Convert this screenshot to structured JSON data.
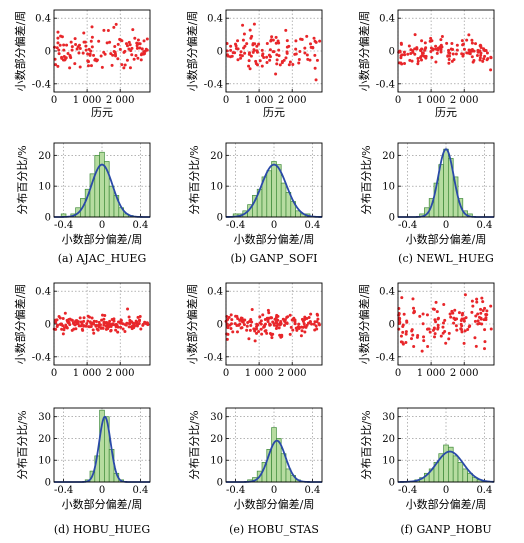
{
  "colors": {
    "scatter": "#e8262a",
    "bar_fill": "#b6dca0",
    "bar_edge": "#3f8a3a",
    "curve": "#2a4aa8",
    "grid": "#888888"
  },
  "chart_data": [
    {
      "id": "a",
      "caption": "(a) AJAC_HUEG",
      "scatter": {
        "type": "scatter",
        "xlabel": "历元",
        "ylabel": "小数部分偏差/周",
        "xlim": [
          0,
          2900
        ],
        "ylim": [
          -0.5,
          0.5
        ],
        "xticks": [
          "0",
          "1 000",
          "2 000"
        ],
        "xtick_values": [
          0,
          1000,
          2000
        ],
        "yticks": [
          "-0.4",
          "0",
          "0.4"
        ],
        "ytick_values": [
          -0.4,
          0,
          0.4
        ],
        "spread": 0.11,
        "count": 130,
        "seed": 11
      },
      "hist": {
        "type": "bar",
        "xlabel": "小数部分偏差/周",
        "ylabel": "分布百分比/%",
        "xlim": [
          -0.5,
          0.5
        ],
        "ylim": [
          0,
          24
        ],
        "xticks": [
          "-0.4",
          "0",
          "0.4"
        ],
        "xtick_values": [
          -0.4,
          0,
          0.4
        ],
        "yticks": [
          "0",
          "10",
          "20"
        ],
        "ytick_values": [
          0,
          10,
          20
        ],
        "bin_width": 0.05,
        "bins": [
          {
            "x": -0.4,
            "v": 1
          },
          {
            "x": -0.35,
            "v": 0
          },
          {
            "x": -0.3,
            "v": 1
          },
          {
            "x": -0.25,
            "v": 3
          },
          {
            "x": -0.2,
            "v": 6
          },
          {
            "x": -0.15,
            "v": 9
          },
          {
            "x": -0.1,
            "v": 14
          },
          {
            "x": -0.05,
            "v": 20
          },
          {
            "x": 0,
            "v": 21
          },
          {
            "x": 0.05,
            "v": 18
          },
          {
            "x": 0.1,
            "v": 10
          },
          {
            "x": 0.15,
            "v": 7
          },
          {
            "x": 0.2,
            "v": 3
          },
          {
            "x": 0.25,
            "v": 1
          },
          {
            "x": 0.3,
            "v": 0.5
          }
        ],
        "curve": {
          "mu": 0.0,
          "sigma": 0.11,
          "peak": 17
        }
      }
    },
    {
      "id": "b",
      "caption": "(b) GANP_SOFI",
      "scatter": {
        "type": "scatter",
        "xlabel": "历元",
        "ylabel": "小数部分偏差/周",
        "xlim": [
          0,
          2900
        ],
        "ylim": [
          -0.5,
          0.5
        ],
        "xticks": [
          "0",
          "1 000",
          "2 000"
        ],
        "xtick_values": [
          0,
          1000,
          2000
        ],
        "yticks": [
          "-0.4",
          "0",
          "0.4"
        ],
        "ytick_values": [
          -0.4,
          0,
          0.4
        ],
        "spread": 0.13,
        "count": 120,
        "seed": 23
      },
      "hist": {
        "type": "bar",
        "xlabel": "小数部分偏差/周",
        "ylabel": "分布百分比/%",
        "xlim": [
          -0.5,
          0.5
        ],
        "ylim": [
          0,
          24
        ],
        "xticks": [
          "-0.4",
          "0",
          "0.4"
        ],
        "xtick_values": [
          -0.4,
          0,
          0.4
        ],
        "yticks": [
          "0",
          "10",
          "20"
        ],
        "ytick_values": [
          0,
          10,
          20
        ],
        "bin_width": 0.05,
        "bins": [
          {
            "x": -0.4,
            "v": 1
          },
          {
            "x": -0.35,
            "v": 1
          },
          {
            "x": -0.3,
            "v": 2
          },
          {
            "x": -0.25,
            "v": 4
          },
          {
            "x": -0.2,
            "v": 7
          },
          {
            "x": -0.15,
            "v": 9
          },
          {
            "x": -0.1,
            "v": 13
          },
          {
            "x": -0.05,
            "v": 15
          },
          {
            "x": 0,
            "v": 18
          },
          {
            "x": 0.05,
            "v": 17
          },
          {
            "x": 0.1,
            "v": 11
          },
          {
            "x": 0.15,
            "v": 8
          },
          {
            "x": 0.2,
            "v": 5
          },
          {
            "x": 0.25,
            "v": 2
          },
          {
            "x": 0.3,
            "v": 1
          },
          {
            "x": 0.35,
            "v": 1
          }
        ],
        "curve": {
          "mu": 0.0,
          "sigma": 0.13,
          "peak": 17
        }
      }
    },
    {
      "id": "c",
      "caption": "(c) NEWL_HUEG",
      "scatter": {
        "type": "scatter",
        "xlabel": "历元",
        "ylabel": "小数部分偏差/周",
        "xlim": [
          0,
          2900
        ],
        "ylim": [
          -0.5,
          0.5
        ],
        "xticks": [
          "0",
          "1 000",
          "2 000"
        ],
        "xtick_values": [
          0,
          1000,
          2000
        ],
        "yticks": [
          "-0.4",
          "0",
          "0.4"
        ],
        "ytick_values": [
          -0.4,
          0,
          0.4
        ],
        "spread": 0.08,
        "count": 140,
        "seed": 37
      },
      "hist": {
        "type": "bar",
        "xlabel": "小数部分偏差/周",
        "ylabel": "分布百分比/%",
        "xlim": [
          -0.5,
          0.5
        ],
        "ylim": [
          0,
          24
        ],
        "xticks": [
          "-0.4",
          "0",
          "0.4"
        ],
        "xtick_values": [
          -0.4,
          0,
          0.4
        ],
        "yticks": [
          "0",
          "10",
          "20"
        ],
        "ytick_values": [
          0,
          10,
          20
        ],
        "bin_width": 0.05,
        "bins": [
          {
            "x": -0.25,
            "v": 1
          },
          {
            "x": -0.2,
            "v": 3
          },
          {
            "x": -0.15,
            "v": 6
          },
          {
            "x": -0.1,
            "v": 11
          },
          {
            "x": -0.05,
            "v": 17
          },
          {
            "x": 0,
            "v": 22
          },
          {
            "x": 0.05,
            "v": 19
          },
          {
            "x": 0.1,
            "v": 13
          },
          {
            "x": 0.15,
            "v": 6
          },
          {
            "x": 0.2,
            "v": 2
          },
          {
            "x": 0.25,
            "v": 1
          }
        ],
        "curve": {
          "mu": 0.0,
          "sigma": 0.08,
          "peak": 22
        }
      }
    },
    {
      "id": "d",
      "caption": "(d) HOBU_HUEG",
      "scatter": {
        "type": "scatter",
        "xlabel": "",
        "ylabel": "小数部分偏差/周",
        "xlim": [
          0,
          2900
        ],
        "ylim": [
          -0.5,
          0.5
        ],
        "xticks": [
          "0",
          "1 000",
          "2 000"
        ],
        "xtick_values": [
          0,
          1000,
          2000
        ],
        "yticks": [
          "-0.4",
          "0",
          "0.4"
        ],
        "ytick_values": [
          -0.4,
          0,
          0.4
        ],
        "spread": 0.05,
        "count": 180,
        "seed": 41
      },
      "hist": {
        "type": "bar",
        "xlabel": "小数部分偏差/周",
        "ylabel": "分布百分比/%",
        "xlim": [
          -0.5,
          0.5
        ],
        "ylim": [
          0,
          34
        ],
        "xticks": [
          "-0.4",
          "0",
          "0.4"
        ],
        "xtick_values": [
          -0.4,
          0,
          0.4
        ],
        "yticks": [
          "0",
          "10",
          "20",
          "30"
        ],
        "ytick_values": [
          0,
          10,
          20,
          30
        ],
        "bin_width": 0.05,
        "bins": [
          {
            "x": -0.15,
            "v": 1
          },
          {
            "x": -0.1,
            "v": 5
          },
          {
            "x": -0.05,
            "v": 12
          },
          {
            "x": 0,
            "v": 33
          },
          {
            "x": 0.05,
            "v": 30
          },
          {
            "x": 0.1,
            "v": 15
          },
          {
            "x": 0.15,
            "v": 4
          },
          {
            "x": 0.2,
            "v": 1
          }
        ],
        "curve": {
          "mu": 0.03,
          "sigma": 0.06,
          "peak": 30
        }
      }
    },
    {
      "id": "e",
      "caption": "(e) HOBU_STAS",
      "scatter": {
        "type": "scatter",
        "xlabel": "",
        "ylabel": "小数部分偏差/周",
        "xlim": [
          0,
          2900
        ],
        "ylim": [
          -0.5,
          0.5
        ],
        "xticks": [
          "0",
          "1 000",
          "2 000"
        ],
        "xtick_values": [
          0,
          1000,
          2000
        ],
        "yticks": [
          "-0.4",
          "0",
          "0.4"
        ],
        "ytick_values": [
          -0.4,
          0,
          0.4
        ],
        "spread": 0.08,
        "count": 170,
        "seed": 53
      },
      "hist": {
        "type": "bar",
        "xlabel": "小数部分偏差/周",
        "ylabel": "分布百分比/%",
        "xlim": [
          -0.5,
          0.5
        ],
        "ylim": [
          0,
          34
        ],
        "xticks": [
          "-0.4",
          "0",
          "0.4"
        ],
        "xtick_values": [
          -0.4,
          0,
          0.4
        ],
        "yticks": [
          "0",
          "10",
          "20",
          "30"
        ],
        "ytick_values": [
          0,
          10,
          20,
          30
        ],
        "bin_width": 0.05,
        "bins": [
          {
            "x": -0.25,
            "v": 1
          },
          {
            "x": -0.2,
            "v": 2
          },
          {
            "x": -0.15,
            "v": 5
          },
          {
            "x": -0.1,
            "v": 9
          },
          {
            "x": -0.05,
            "v": 15
          },
          {
            "x": 0,
            "v": 25
          },
          {
            "x": 0.05,
            "v": 20
          },
          {
            "x": 0.1,
            "v": 13
          },
          {
            "x": 0.15,
            "v": 6
          },
          {
            "x": 0.2,
            "v": 3
          },
          {
            "x": 0.25,
            "v": 1
          }
        ],
        "curve": {
          "mu": 0.03,
          "sigma": 0.09,
          "peak": 19
        }
      }
    },
    {
      "id": "f",
      "caption": "(f) GANP_HOBU",
      "scatter": {
        "type": "scatter",
        "xlabel": "",
        "ylabel": "小数部分偏差/周",
        "xlim": [
          0,
          2900
        ],
        "ylim": [
          -0.5,
          0.5
        ],
        "xticks": [
          "0",
          "1 000",
          "2 000"
        ],
        "xtick_values": [
          0,
          1000,
          2000
        ],
        "yticks": [
          "-0.4",
          "0",
          "0.4"
        ],
        "ytick_values": [
          -0.4,
          0,
          0.4
        ],
        "spread": 0.15,
        "count": 140,
        "seed": 67
      },
      "hist": {
        "type": "bar",
        "xlabel": "小数部分偏差/周",
        "ylabel": "分布百分比/%",
        "xlim": [
          -0.5,
          0.5
        ],
        "ylim": [
          0,
          34
        ],
        "xticks": [
          "-0.4",
          "0",
          "0.4"
        ],
        "xtick_values": [
          -0.4,
          0,
          0.4
        ],
        "yticks": [
          "0",
          "10",
          "20",
          "30"
        ],
        "ytick_values": [
          0,
          10,
          20,
          30
        ],
        "bin_width": 0.05,
        "bins": [
          {
            "x": -0.3,
            "v": 1
          },
          {
            "x": -0.25,
            "v": 2
          },
          {
            "x": -0.2,
            "v": 4
          },
          {
            "x": -0.15,
            "v": 6
          },
          {
            "x": -0.1,
            "v": 9
          },
          {
            "x": -0.05,
            "v": 13
          },
          {
            "x": 0,
            "v": 17
          },
          {
            "x": 0.05,
            "v": 16
          },
          {
            "x": 0.1,
            "v": 12
          },
          {
            "x": 0.15,
            "v": 9
          },
          {
            "x": 0.2,
            "v": 6
          },
          {
            "x": 0.25,
            "v": 4
          },
          {
            "x": 0.3,
            "v": 2
          },
          {
            "x": 0.35,
            "v": 1
          }
        ],
        "curve": {
          "mu": 0.04,
          "sigma": 0.14,
          "peak": 14
        }
      }
    }
  ]
}
